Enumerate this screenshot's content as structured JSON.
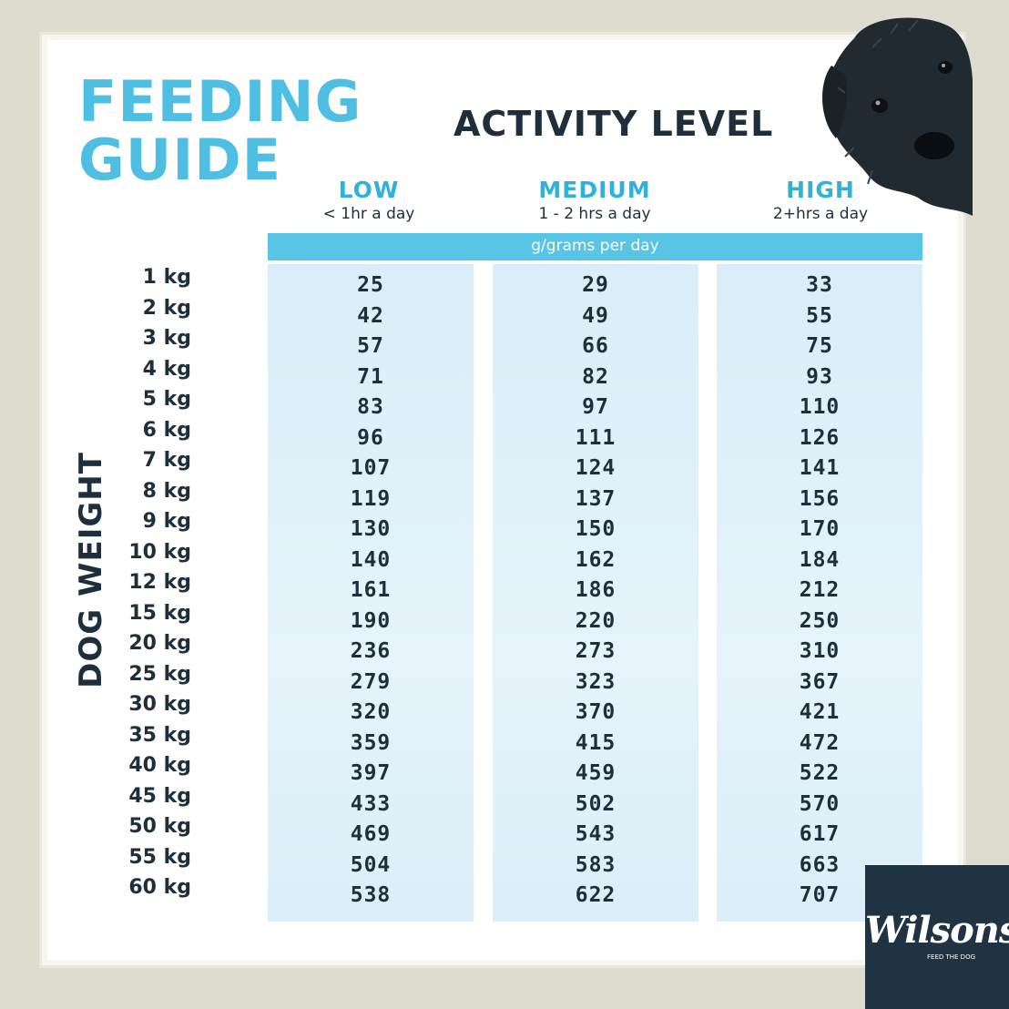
{
  "title": [
    "FEEDING",
    "GUIDE"
  ],
  "activity_heading": "ACTIVITY LEVEL",
  "columns": [
    {
      "level": "LOW",
      "hours": "< 1hr a day"
    },
    {
      "level": "MEDIUM",
      "hours": "1 - 2 hrs a day"
    },
    {
      "level": "HIGH",
      "hours": "2+hrs a day"
    }
  ],
  "unit_band": "g/grams per day",
  "row_axis_label": "DOG WEIGHT",
  "weights": [
    "1 kg",
    "2 kg",
    "3 kg",
    "4 kg",
    "5 kg",
    "6 kg",
    "7 kg",
    "8 kg",
    "9 kg",
    "10 kg",
    "12 kg",
    "15 kg",
    "20 kg",
    "25 kg",
    "30 kg",
    "35 kg",
    "40 kg",
    "45 kg",
    "50 kg",
    "55 kg",
    "60 kg"
  ],
  "grams": {
    "low": [
      "25",
      "42",
      "57",
      "71",
      "83",
      "96",
      "107",
      "119",
      "130",
      "140",
      "161",
      "190",
      "236",
      "279",
      "320",
      "359",
      "397",
      "433",
      "469",
      "504",
      "538"
    ],
    "medium": [
      "29",
      "49",
      "66",
      "82",
      "97",
      "111",
      "124",
      "137",
      "150",
      "162",
      "186",
      "220",
      "273",
      "323",
      "370",
      "415",
      "459",
      "502",
      "543",
      "583",
      "622"
    ],
    "high": [
      "33",
      "55",
      "75",
      "93",
      "110",
      "126",
      "141",
      "156",
      "170",
      "184",
      "212",
      "250",
      "310",
      "367",
      "421",
      "472",
      "522",
      "570",
      "617",
      "663",
      "707"
    ]
  },
  "logo": {
    "brand": "Wilsons",
    "tagline": "FEED THE DOG"
  },
  "colors": {
    "accent": "#4ebfe2",
    "text_dark": "#1e2f3b",
    "column_fill": "#dff0f9",
    "logo_bg": "#1f3343"
  }
}
